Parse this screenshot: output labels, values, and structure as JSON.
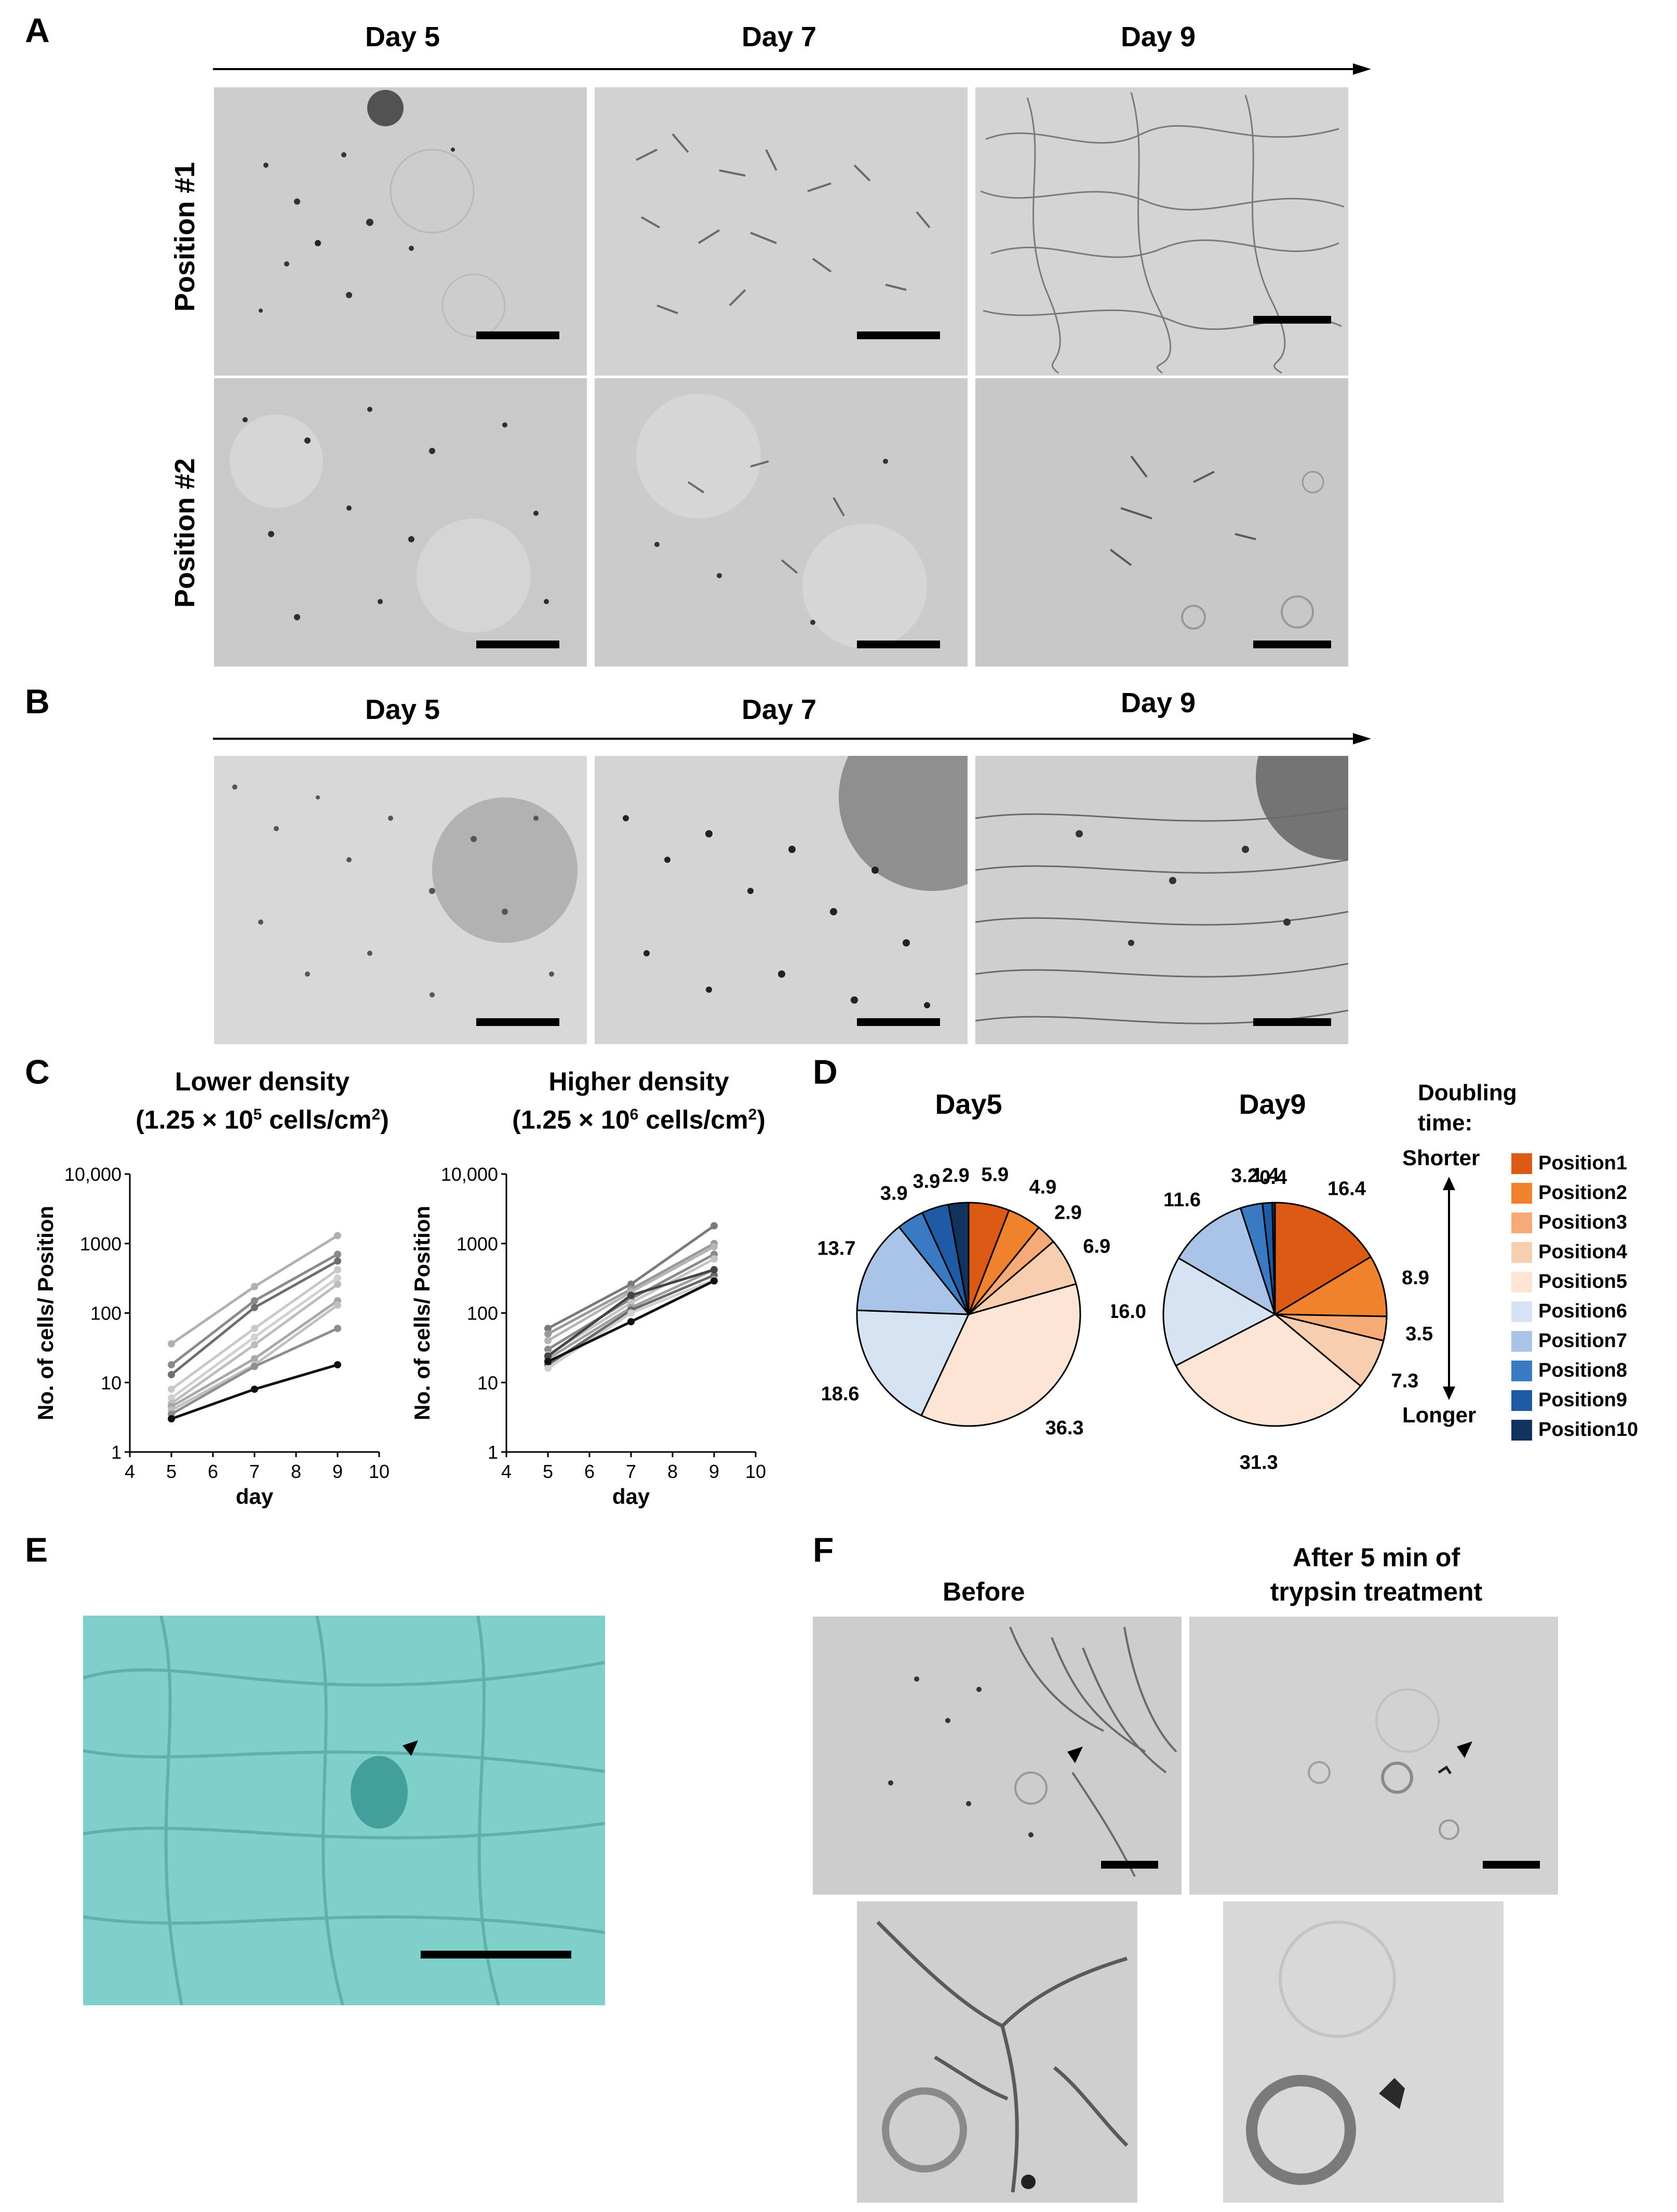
{
  "panels": {
    "A": {
      "letter": "A",
      "days": [
        "Day 5",
        "Day 7",
        "Day 9"
      ],
      "rows": [
        "Position #1",
        "Position #2"
      ]
    },
    "B": {
      "letter": "B",
      "days": [
        "Day 5",
        "Day 7",
        "Day 9"
      ]
    },
    "C": {
      "letter": "C",
      "left_title_line1": "Lower density",
      "left_title_line2_pre": "(1.25 × 10",
      "left_title_sup": "5",
      "left_title_mid": " cells/cm",
      "left_title_sup2": "2",
      "left_title_post": ")",
      "right_title_line1": "Higher density",
      "right_title_line2_pre": "(1.25 × 10",
      "right_title_sup": "6",
      "right_title_mid": " cells/cm",
      "right_title_sup2": "2",
      "right_title_post": ")"
    },
    "D": {
      "letter": "D",
      "legend_title_line1": "Doubling",
      "legend_title_line2": "time:",
      "shorter": "Shorter",
      "longer": "Longer"
    },
    "E": {
      "letter": "E"
    },
    "F": {
      "letter": "F",
      "before": "Before",
      "after_line1": "After 5 min of",
      "after_line2": "trypsin treatment"
    }
  },
  "chart_data": [
    {
      "type": "line",
      "panel": "C-left",
      "title": "Lower density (1.25 × 10^5 cells/cm^2)",
      "xlabel": "day",
      "ylabel": "No. of cells/ Position",
      "xlim": [
        4,
        10
      ],
      "xticks": [
        "4",
        "5",
        "6",
        "7",
        "8",
        "9",
        "10"
      ],
      "yscale": "log",
      "ylim": [
        1,
        10000
      ],
      "yticks": [
        "1",
        "10",
        "100",
        "1000",
        "10,000"
      ],
      "x": [
        5,
        7,
        9
      ],
      "series": [
        {
          "values": [
            36,
            240,
            1300
          ],
          "color": "#b0b0b0"
        },
        {
          "values": [
            18,
            150,
            700
          ],
          "color": "#8a8a8a"
        },
        {
          "values": [
            13,
            120,
            560
          ],
          "color": "#6e6e6e"
        },
        {
          "values": [
            8,
            60,
            420
          ],
          "color": "#c8c8c8"
        },
        {
          "values": [
            6,
            45,
            320
          ],
          "color": "#d0d0d0"
        },
        {
          "values": [
            5,
            35,
            260
          ],
          "color": "#bdbdbd"
        },
        {
          "values": [
            4.5,
            22,
            150
          ],
          "color": "#a8a8a8"
        },
        {
          "values": [
            4,
            18,
            130
          ],
          "color": "#c0c0c0"
        },
        {
          "values": [
            3.5,
            17,
            60
          ],
          "color": "#8e8e8e"
        },
        {
          "values": [
            3,
            8,
            18
          ],
          "color": "#111111"
        }
      ]
    },
    {
      "type": "line",
      "panel": "C-right",
      "xlabel": "day",
      "ylabel": "No. of cells/ Position",
      "xlim": [
        4,
        10
      ],
      "xticks": [
        "4",
        "5",
        "6",
        "7",
        "8",
        "9",
        "10"
      ],
      "yscale": "log",
      "ylim": [
        1,
        10000
      ],
      "yticks": [
        "1",
        "10",
        "100",
        "1000",
        "10,000"
      ],
      "x": [
        5,
        7,
        9
      ],
      "series": [
        {
          "values": [
            60,
            260,
            1800
          ],
          "color": "#7a7a7a"
        },
        {
          "values": [
            50,
            220,
            1000
          ],
          "color": "#9a9a9a"
        },
        {
          "values": [
            40,
            200,
            900
          ],
          "color": "#b5b5b5"
        },
        {
          "values": [
            30,
            160,
            700
          ],
          "color": "#8a8a8a"
        },
        {
          "values": [
            25,
            140,
            600
          ],
          "color": "#c4c4c4"
        },
        {
          "values": [
            22,
            120,
            420
          ],
          "color": "#a0a0a0"
        },
        {
          "values": [
            18,
            110,
            350
          ],
          "color": "#6a6a6a"
        },
        {
          "values": [
            16,
            100,
            300
          ],
          "color": "#d0d0d0"
        },
        {
          "values": [
            24,
            180,
            420
          ],
          "color": "#444444"
        },
        {
          "values": [
            20,
            75,
            290
          ],
          "color": "#111111"
        }
      ]
    },
    {
      "type": "pie",
      "panel": "D-left",
      "title": "Day5",
      "categories": [
        "Position1",
        "Position2",
        "Position3",
        "Position4",
        "Position5",
        "Position6",
        "Position7",
        "Position8",
        "Position9",
        "Position10"
      ],
      "values": [
        5.9,
        4.9,
        2.9,
        6.9,
        36.3,
        18.6,
        13.7,
        3.9,
        3.9,
        2.9
      ],
      "labels": [
        "5.9",
        "4.9",
        "2.9",
        "6.9",
        "36.3",
        "18.6",
        "13.7",
        "3.9",
        "3.9",
        "2.9"
      ]
    },
    {
      "type": "pie",
      "panel": "D-right",
      "title": "Day9",
      "categories": [
        "Position1",
        "Position2",
        "Position3",
        "Position4",
        "Position5",
        "Position6",
        "Position7",
        "Position8",
        "Position9",
        "Position10"
      ],
      "values": [
        16.4,
        8.9,
        3.5,
        7.3,
        31.3,
        16.0,
        11.6,
        3.2,
        1.4,
        0.4
      ],
      "labels": [
        "16.4",
        "8.9",
        "3.5",
        "7.3",
        "31.3",
        "16.0",
        "11.6",
        "3.2",
        "1.4",
        "0.4"
      ]
    }
  ],
  "legend": {
    "items": [
      "Position1",
      "Position2",
      "Position3",
      "Position4",
      "Position5",
      "Position6",
      "Position7",
      "Position8",
      "Position9",
      "Position10"
    ],
    "colors": [
      "#dc5a14",
      "#f0822d",
      "#f5aa78",
      "#f8cfae",
      "#fde5d5",
      "#d6e3f3",
      "#a9c4e7",
      "#3a7ac2",
      "#1f5aa6",
      "#13335f"
    ]
  }
}
